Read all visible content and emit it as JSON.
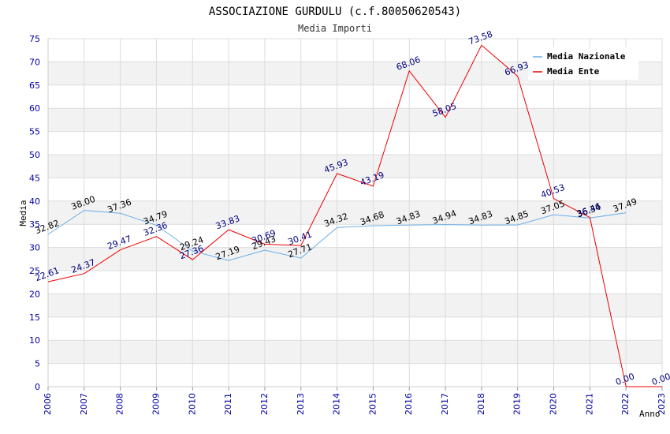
{
  "chart_data": {
    "type": "line",
    "title": "ASSOCIAZIONE GURDULU (c.f.80050620543)",
    "subtitle": "Media Importi",
    "xlabel": "Anno",
    "ylabel": "Media",
    "ylim": [
      0,
      75
    ],
    "ytick_step": 5,
    "x": [
      "2006",
      "2007",
      "2008",
      "2009",
      "2010",
      "2011",
      "2012",
      "2013",
      "2014",
      "2015",
      "2016",
      "2017",
      "2018",
      "2019",
      "2020",
      "2021",
      "2022",
      "2023"
    ],
    "series": [
      {
        "name": "Media Nazionale",
        "color": "#6aaee8",
        "label_color": "#000000",
        "values": [
          32.82,
          38.0,
          37.36,
          34.79,
          29.24,
          27.19,
          29.43,
          27.71,
          34.32,
          34.68,
          34.83,
          34.94,
          34.83,
          34.85,
          37.05,
          36.34,
          37.49,
          null
        ],
        "labels": [
          "32.82",
          "38.00",
          "37.36",
          "34.79",
          "29.24",
          "27.19",
          "29.43",
          "27.71",
          "34.32",
          "34.68",
          "34.83",
          "34.94",
          "34.83",
          "34.85",
          "37.05",
          "36.34",
          "37.49",
          null
        ]
      },
      {
        "name": "Media Ente",
        "color": "#ee0000",
        "label_color": "#000080",
        "values": [
          22.61,
          24.37,
          29.47,
          32.36,
          27.36,
          33.83,
          30.69,
          30.41,
          45.93,
          43.19,
          68.06,
          58.05,
          73.58,
          66.93,
          40.53,
          36.46,
          0.0,
          0.0
        ],
        "labels": [
          "22.61",
          "24.37",
          "29.47",
          "32.36",
          "27.36",
          "33.83",
          "30.69",
          "30.41",
          "45.93",
          "43.19",
          "68.06",
          "58.05",
          "73.58",
          "66.93",
          "40.53",
          "36.46",
          "0.00",
          "0.00"
        ]
      }
    ],
    "legend_position": "top-right",
    "grid": true,
    "colors": {
      "band": "#f2f2f2",
      "gridline": "#dcdcdc",
      "axis_text": "#0000aa",
      "title_text": "#000000",
      "subtitle_text": "#333333"
    }
  }
}
